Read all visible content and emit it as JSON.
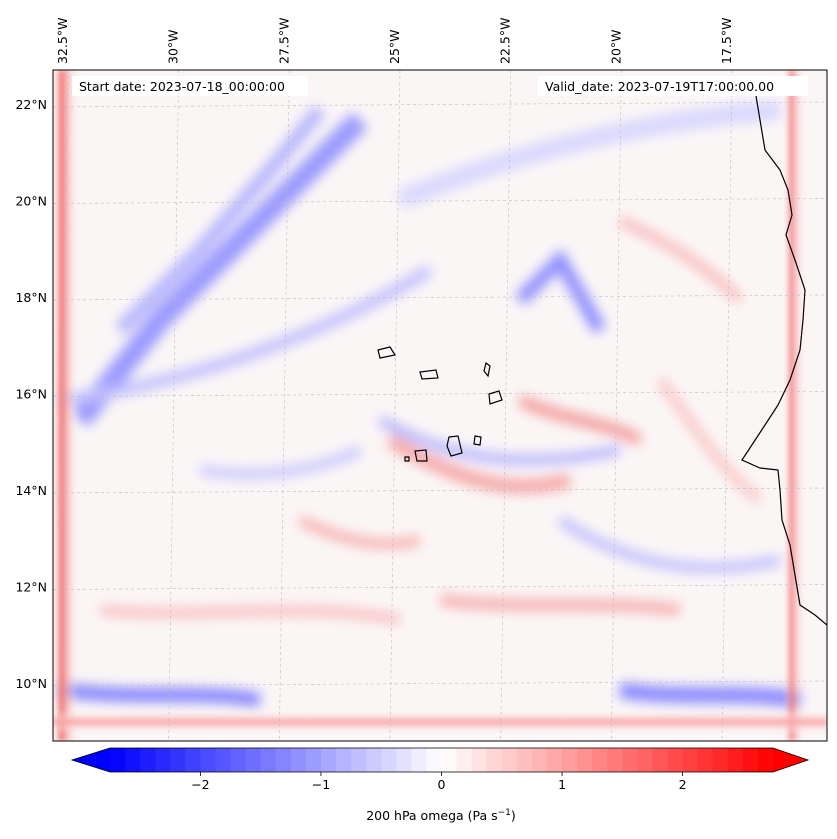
{
  "map": {
    "start_date_text": "Start date: 2023-07-18_00:00:00",
    "valid_date_text": "Valid_date: 2023-07-19T17:00:00.00",
    "lon_labels": [
      "32.5°W",
      "30°W",
      "27.5°W",
      "25°W",
      "22.5°W",
      "20°W",
      "17.5°W"
    ],
    "lon_values": [
      -32.5,
      -30,
      -27.5,
      -25,
      -22.5,
      -20,
      -17.5
    ],
    "lat_labels": [
      "22°N",
      "20°N",
      "18°N",
      "16°N",
      "14°N",
      "12°N",
      "10°N"
    ],
    "lat_values": [
      22,
      20,
      18,
      16,
      14,
      12,
      10
    ],
    "gridlines": true
  },
  "colorbar": {
    "label": "200 hPa omega (Pa s",
    "label_superscript": "−1",
    "label_close": ")",
    "tick_labels": [
      "−2",
      "−1",
      "0",
      "1",
      "2"
    ],
    "tick_values": [
      -2,
      -1,
      0,
      1,
      2
    ],
    "range": [
      -2.75,
      2.75
    ],
    "extend": "both",
    "cmap": "bwr"
  },
  "colors": {
    "negative": "#0000ff",
    "neutral": "#ffffff",
    "positive": "#ff0000",
    "coastline": "#000000"
  }
}
